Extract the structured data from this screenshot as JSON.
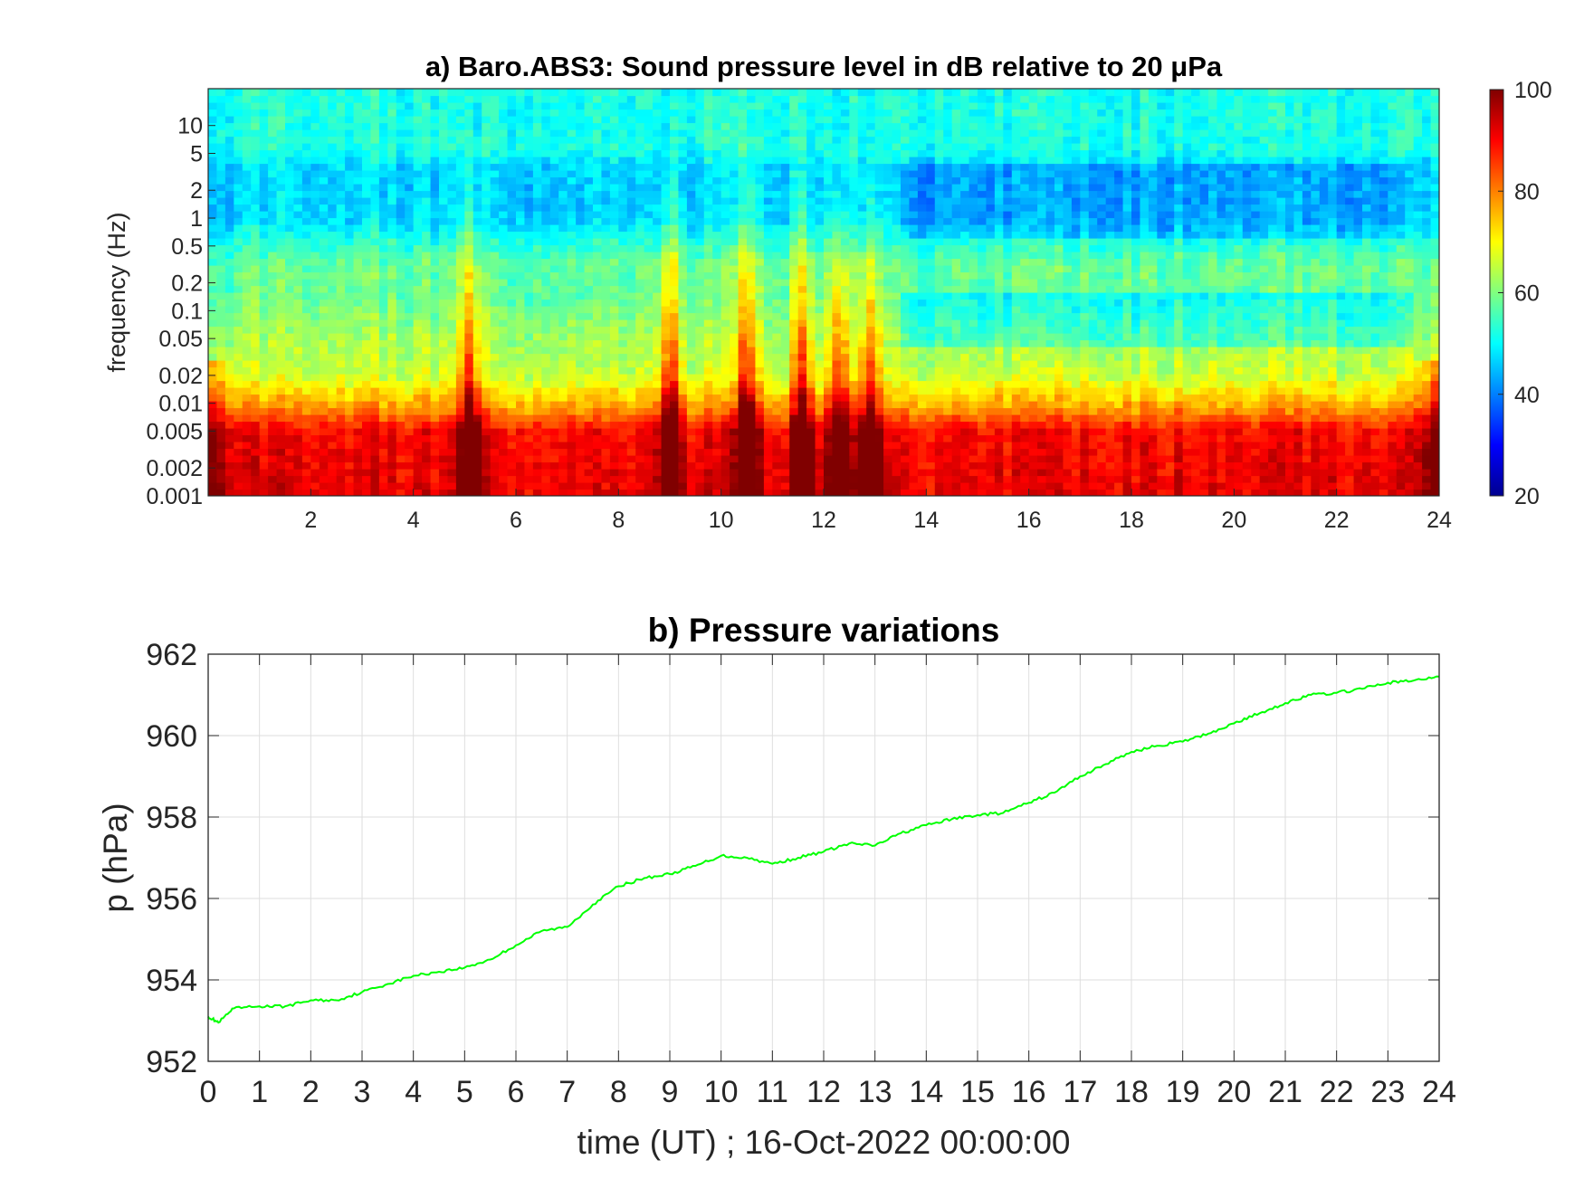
{
  "chart_data": [
    {
      "type": "heatmap",
      "title": "a) Baro.ABS3: Sound pressure level in dB relative to 20 μPa",
      "xlabel": "",
      "ylabel": "frequency (Hz)",
      "xlim": [
        0,
        24
      ],
      "x_ticks": [
        2,
        4,
        6,
        8,
        10,
        12,
        14,
        16,
        18,
        20,
        22,
        24
      ],
      "ylim": [
        0.001,
        25
      ],
      "y_scale": "log",
      "y_ticks": [
        {
          "value": 0.001,
          "label": "0.001"
        },
        {
          "value": 0.002,
          "label": "0.002"
        },
        {
          "value": 0.005,
          "label": "0.005"
        },
        {
          "value": 0.01,
          "label": "0.01"
        },
        {
          "value": 0.02,
          "label": "0.02"
        },
        {
          "value": 0.05,
          "label": "0.05"
        },
        {
          "value": 0.1,
          "label": "0.1"
        },
        {
          "value": 0.2,
          "label": "0.2"
        },
        {
          "value": 0.5,
          "label": "0.5"
        },
        {
          "value": 1,
          "label": "1"
        },
        {
          "value": 2,
          "label": "2"
        },
        {
          "value": 5,
          "label": "5"
        },
        {
          "value": 10,
          "label": "10"
        }
      ],
      "colormap": "jet",
      "clim": [
        20,
        100
      ],
      "colorbar_ticks": [
        20,
        40,
        60,
        80,
        100
      ],
      "approx_levels_dB": {
        "above_5Hz": 52,
        "0.5_to_5Hz": 47,
        "0.1_to_0.5Hz": 58,
        "0.01_to_0.1Hz": 62,
        "0.005_to_0.01Hz": 78,
        "0.001_to_0.005Hz": 90
      },
      "broadband_bursts_hour": [
        5.1,
        9.0,
        10.5,
        11.6,
        12.3,
        12.9
      ]
    },
    {
      "type": "line",
      "title": "b) Pressure variations",
      "xlabel": "time (UT) ; 16-Oct-2022 00:00:00",
      "ylabel": "p (hPa)",
      "xlim": [
        0,
        24
      ],
      "ylim": [
        952,
        962
      ],
      "x_ticks": [
        0,
        1,
        2,
        3,
        4,
        5,
        6,
        7,
        8,
        9,
        10,
        11,
        12,
        13,
        14,
        15,
        16,
        17,
        18,
        19,
        20,
        21,
        22,
        23,
        24
      ],
      "y_ticks": [
        952,
        954,
        956,
        958,
        960,
        962
      ],
      "grid": true,
      "color": "#00ff00",
      "series": [
        {
          "x": [
            0,
            0.2,
            0.5,
            1,
            1.5,
            2,
            2.5,
            3,
            3.5,
            4,
            4.5,
            5,
            5.5,
            6,
            6.5,
            7,
            7.5,
            8,
            8.5,
            9,
            9.5,
            10,
            10.5,
            11,
            11.5,
            12,
            12.5,
            13,
            13.5,
            14,
            14.5,
            15,
            15.5,
            16,
            16.5,
            17,
            17.5,
            18,
            18.5,
            19,
            19.5,
            20,
            20.5,
            21,
            21.5,
            22,
            22.5,
            23,
            23.5,
            24
          ],
          "y": [
            953.1,
            952.95,
            953.3,
            953.35,
            953.35,
            953.5,
            953.5,
            953.7,
            953.9,
            954.1,
            954.2,
            954.3,
            954.5,
            954.85,
            955.2,
            955.3,
            955.85,
            956.3,
            956.5,
            956.6,
            956.8,
            957.05,
            957.0,
            956.85,
            957.0,
            957.15,
            957.35,
            957.3,
            957.6,
            957.8,
            957.95,
            958.05,
            958.1,
            958.35,
            958.6,
            959.0,
            959.3,
            959.6,
            959.75,
            959.85,
            960.05,
            960.3,
            960.55,
            960.8,
            961.0,
            961.05,
            961.15,
            961.3,
            961.35,
            961.45
          ]
        }
      ]
    }
  ]
}
